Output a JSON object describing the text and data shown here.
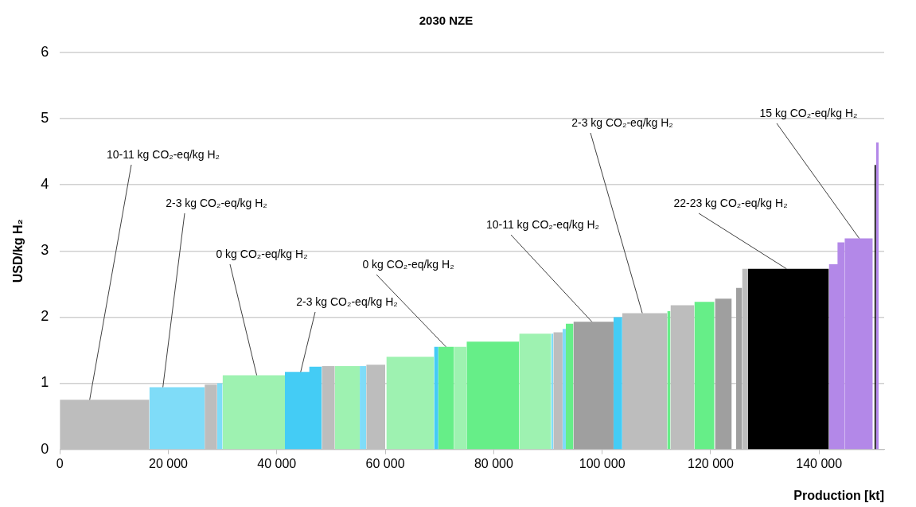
{
  "chart_data": {
    "type": "area",
    "title": "2030 NZE",
    "xlabel": "Production [kt]",
    "ylabel": "USD/kg H₂",
    "xlim": [
      0,
      152000
    ],
    "xticks": [
      0,
      {
        "value": 20000,
        "label": "20 000"
      },
      {
        "value": 40000,
        "label": "40 000"
      },
      {
        "value": 60000,
        "label": "60 000"
      },
      {
        "value": 80000,
        "label": "80 000"
      },
      {
        "value": 100000,
        "label": "100 000"
      },
      {
        "value": 120000,
        "label": "120 000"
      },
      {
        "value": 140000,
        "label": "140 000"
      }
    ],
    "ylim": [
      0,
      6
    ],
    "yticks": [
      0,
      1,
      2,
      3,
      4,
      5,
      6
    ],
    "grid": "y",
    "legend": false,
    "series": [
      {
        "color": "#bdbdbd",
        "x": [
          0,
          16500,
          null,
          26700,
          29000,
          null,
          48300,
          50700,
          null,
          56500,
          60000,
          null,
          91000,
          92700,
          null,
          103700,
          112000,
          null,
          112600,
          117000,
          null,
          125800,
          126900
        ],
        "values": [
          0.75,
          0.75,
          null,
          0.98,
          0.98,
          null,
          1.26,
          1.26,
          null,
          1.28,
          1.28,
          null,
          1.77,
          1.77,
          null,
          2.06,
          2.06,
          null,
          2.18,
          2.18,
          null,
          2.73,
          2.73
        ]
      },
      {
        "color": "#9f9f9f",
        "x": [
          94700,
          102100,
          null,
          120800,
          123900,
          null,
          124700,
          125800
        ],
        "values": [
          1.93,
          1.93,
          null,
          2.28,
          2.28,
          null,
          2.44,
          2.44
        ]
      },
      {
        "color": "#7fdcf8",
        "x": [
          16500,
          26700,
          null,
          29000,
          30000,
          null,
          55300,
          56500,
          null,
          90600,
          91000,
          null,
          92700,
          93300
        ],
        "values": [
          0.94,
          0.94,
          null,
          1.0,
          1.0,
          null,
          1.26,
          1.26,
          null,
          1.75,
          1.75,
          null,
          1.82,
          1.82
        ]
      },
      {
        "color": "#44ccf5",
        "x": [
          41500,
          46000,
          46000,
          48300,
          null,
          69000,
          69800,
          null,
          102100,
          103700
        ],
        "values": [
          1.17,
          1.17,
          1.25,
          1.25,
          null,
          1.55,
          1.55,
          null,
          2.0,
          2.0
        ]
      },
      {
        "color": "#9ef2b1",
        "x": [
          30000,
          41500,
          null,
          50700,
          55300,
          null,
          60200,
          69000,
          null,
          72700,
          75000,
          null,
          84700,
          90600
        ],
        "values": [
          1.12,
          1.12,
          null,
          1.26,
          1.26,
          null,
          1.4,
          1.4,
          null,
          1.55,
          1.55,
          null,
          1.75,
          1.75
        ]
      },
      {
        "color": "#66ee88",
        "x": [
          69800,
          72700,
          null,
          75000,
          84700,
          null,
          93300,
          94700,
          null,
          112000,
          112600,
          null,
          117000,
          120700
        ],
        "values": [
          1.55,
          1.55,
          null,
          1.63,
          1.63,
          null,
          1.9,
          1.9,
          null,
          2.09,
          2.09,
          null,
          2.23,
          2.23
        ]
      },
      {
        "color": "#000000",
        "x": [
          126900,
          141800,
          null,
          150200,
          150500
        ],
        "values": [
          2.73,
          2.73,
          null,
          4.3,
          4.3
        ]
      },
      {
        "color": "#b388e8",
        "x": [
          141800,
          143400,
          143400,
          144700,
          null,
          144700,
          149900,
          null,
          150500,
          151000
        ],
        "values": [
          2.8,
          2.8,
          3.13,
          3.13,
          null,
          3.19,
          3.19,
          null,
          4.64,
          4.64
        ]
      }
    ],
    "annotations": [
      {
        "text": "10-11 kg CO₂-eq/kg H₂",
        "x": 5500,
        "y": 0.75
      },
      {
        "text": "2-3 kg CO₂-eq/kg H₂",
        "x": 19000,
        "y": 0.94
      },
      {
        "text": "0 kg CO₂-eq/kg H₂",
        "x": 36300,
        "y": 1.12
      },
      {
        "text": "2-3 kg CO₂-eq/kg H₂",
        "x": 44400,
        "y": 1.17
      },
      {
        "text": "0 kg CO₂-eq/kg H₂",
        "x": 71200,
        "y": 1.55
      },
      {
        "text": "10-11 kg CO₂-eq/kg H₂",
        "x": 98100,
        "y": 1.93
      },
      {
        "text": "2-3 kg CO₂-eq/kg H₂",
        "x": 107400,
        "y": 2.06
      },
      {
        "text": "22-23 kg CO₂-eq/kg H₂",
        "x": 134000,
        "y": 2.73
      },
      {
        "text": "15 kg CO₂-eq/kg H₂",
        "x": 147400,
        "y": 3.19
      }
    ]
  }
}
